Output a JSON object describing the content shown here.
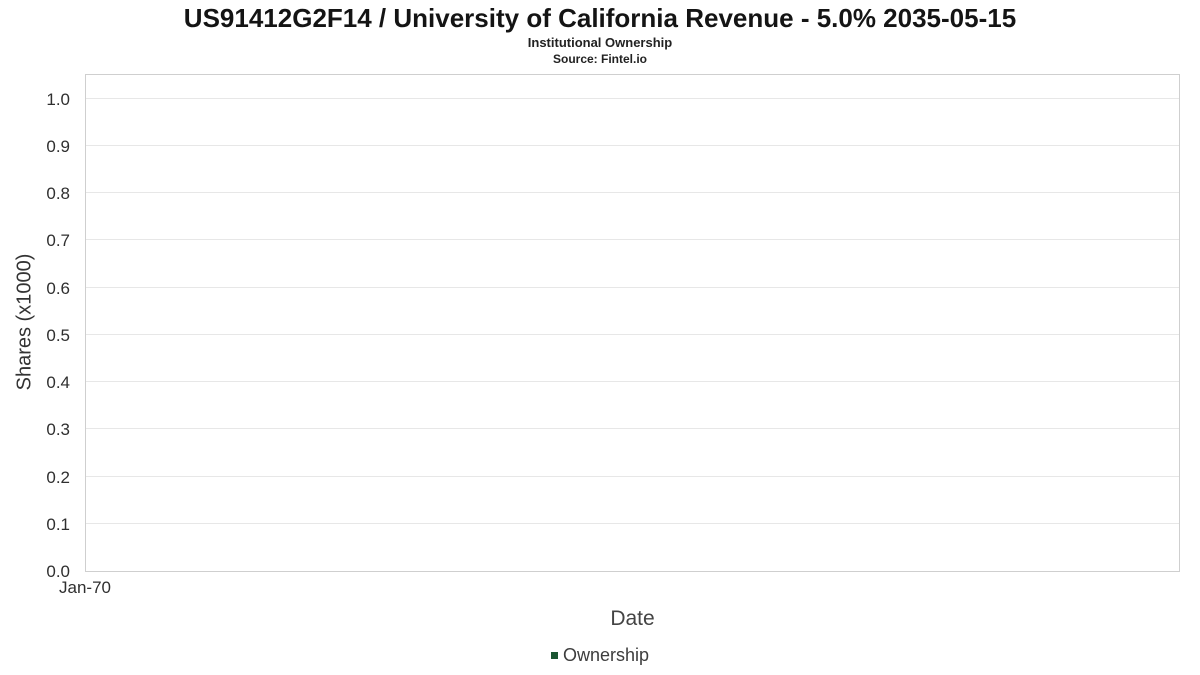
{
  "header": {
    "title": "US91412G2F14 / University of California Revenue - 5.0% 2035-05-15",
    "subtitle": "Institutional Ownership",
    "source": "Source: Fintel.io"
  },
  "chart_data": {
    "type": "line",
    "title": "US91412G2F14 / University of California Revenue - 5.0% 2035-05-15",
    "subtitle": "Institutional Ownership",
    "source_note": "Source: Fintel.io",
    "xlabel": "Date",
    "ylabel": "Shares (x1000)",
    "x_ticks": [
      "Jan-70"
    ],
    "y_ticks": [
      0.0,
      0.1,
      0.2,
      0.3,
      0.4,
      0.5,
      0.6,
      0.7,
      0.8,
      0.9,
      1.0
    ],
    "ylim": [
      0.0,
      1.05
    ],
    "grid": true,
    "legend_position": "bottom",
    "series": [
      {
        "name": "Ownership",
        "color": "#1a5632",
        "x": [],
        "values": []
      }
    ]
  }
}
